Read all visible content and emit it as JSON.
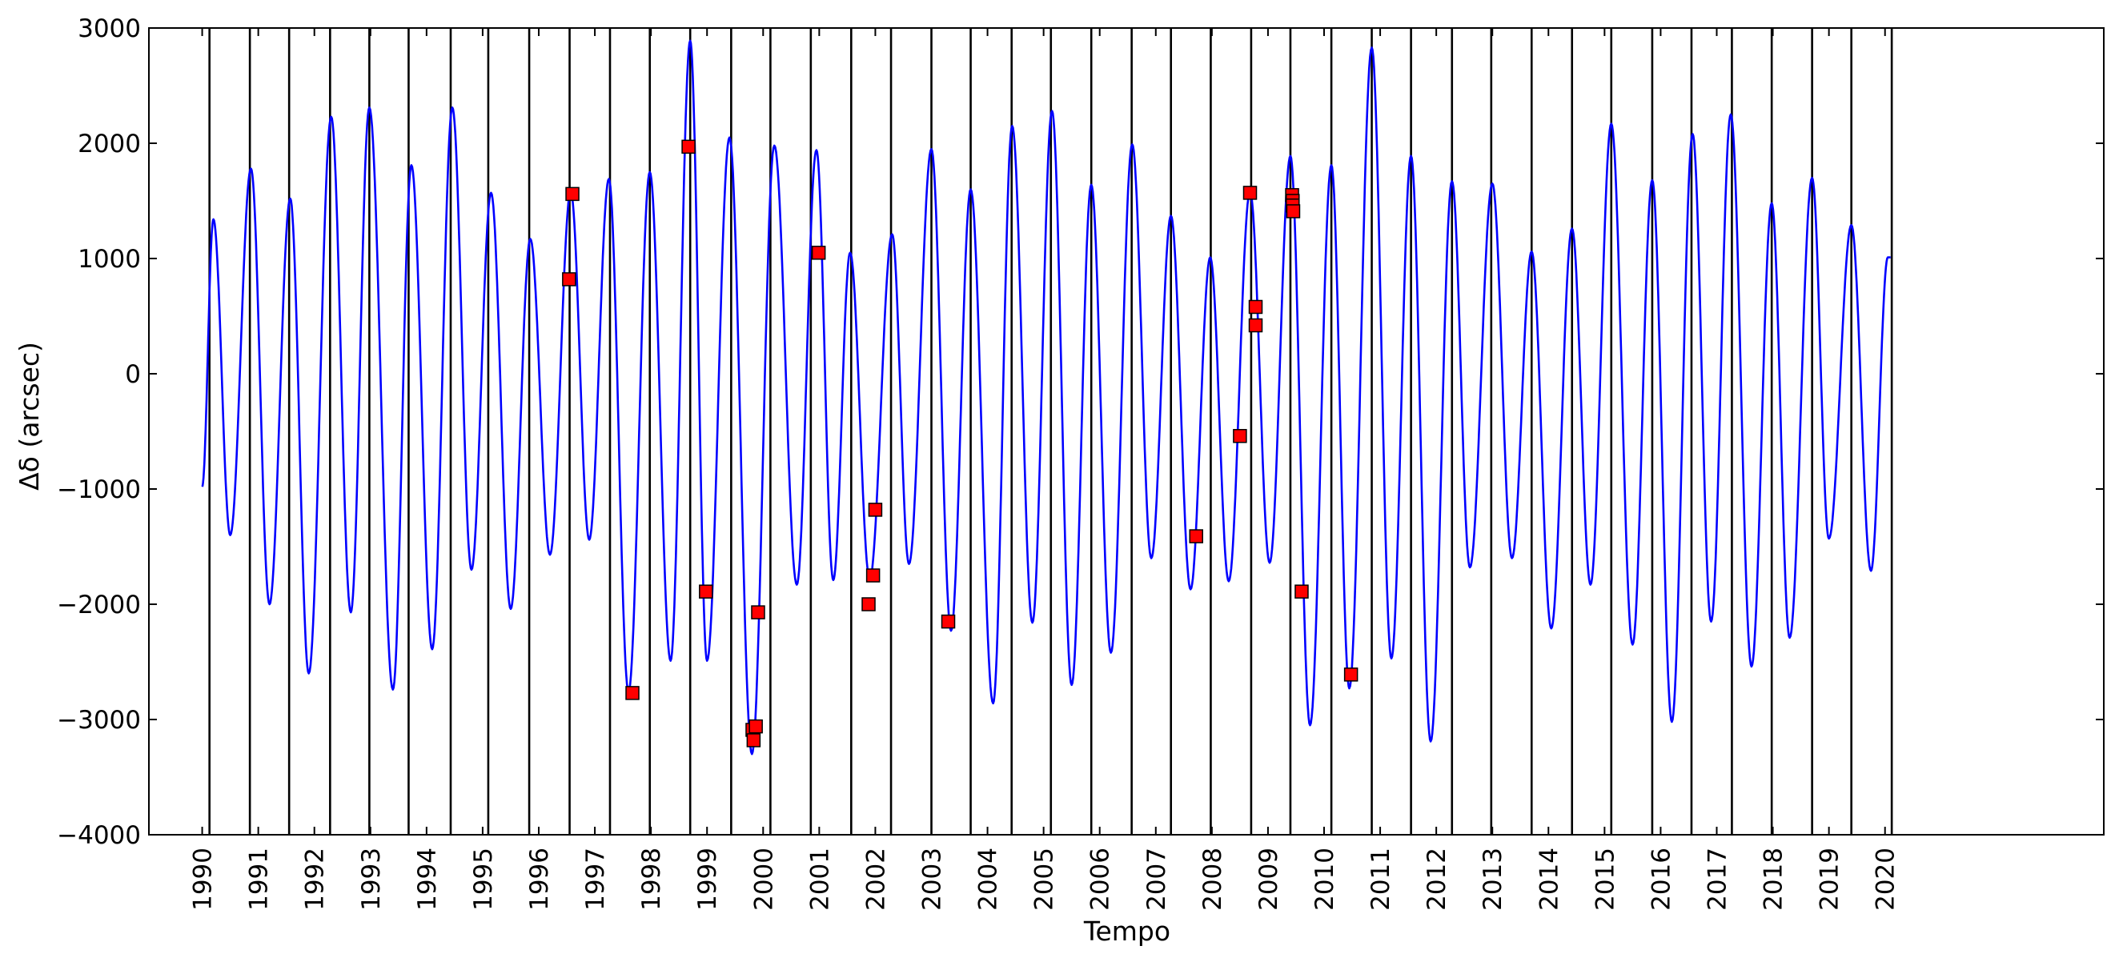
{
  "chart_data": {
    "type": "line",
    "title": "",
    "xlabel": "Tempo",
    "ylabel": "Δδ (arcsec)",
    "xlim": [
      1989.05,
      2023.9
    ],
    "ylim": [
      -4000,
      3000
    ],
    "x_ticks": [
      1990,
      1991,
      1992,
      1993,
      1994,
      1995,
      1996,
      1997,
      1998,
      1999,
      2000,
      2001,
      2002,
      2003,
      2004,
      2005,
      2006,
      2007,
      2008,
      2009,
      2010,
      2011,
      2012,
      2013,
      2014,
      2015,
      2016,
      2017,
      2018,
      2019,
      2020
    ],
    "x_tick_labels": [
      "1990",
      "1991",
      "1992",
      "1993",
      "1994",
      "1995",
      "1996",
      "1997",
      "1998",
      "1999",
      "2000",
      "2001",
      "2002",
      "2003",
      "2004",
      "2005",
      "2006",
      "2007",
      "2008",
      "2009",
      "2010",
      "2011",
      "2012",
      "2013",
      "2014",
      "2015",
      "2016",
      "2017",
      "2018",
      "2019",
      "2020"
    ],
    "y_ticks": [
      -4000,
      -3000,
      -2000,
      -1000,
      0,
      1000,
      2000,
      3000
    ],
    "y_tick_labels": [
      "−4000",
      "−3000",
      "−2000",
      "−1000",
      "0",
      "1000",
      "2000",
      "3000"
    ],
    "grid": false,
    "legend": "none",
    "vertical_lines": [
      1990.13,
      1990.85,
      1991.55,
      1992.28,
      1992.98,
      1993.68,
      1994.43,
      1995.1,
      1995.83,
      1996.55,
      1997.27,
      1997.98,
      1998.7,
      1999.43,
      2000.13,
      2000.85,
      2001.57,
      2002.28,
      2003.0,
      2003.7,
      2004.43,
      2005.13,
      2005.85,
      2006.57,
      2007.27,
      2007.98,
      2008.7,
      2009.4,
      2010.13,
      2010.85,
      2011.55,
      2012.28,
      2012.98,
      2013.7,
      2014.42,
      2015.12,
      2015.85,
      2016.55,
      2017.27,
      2017.98,
      2018.7,
      2019.4,
      2020.12
    ],
    "line_series": {
      "name": "",
      "color": "#0000ff",
      "x": [
        1990.0,
        1990.2,
        1990.5,
        1990.87,
        1991.2,
        1991.57,
        1991.9,
        1992.3,
        1992.65,
        1992.98,
        1993.4,
        1993.73,
        1994.1,
        1994.46,
        1994.8,
        1995.15,
        1995.5,
        1995.85,
        1996.2,
        1996.57,
        1996.9,
        1997.25,
        1997.6,
        1997.98,
        1998.35,
        1998.7,
        1999.0,
        1999.4,
        1999.8,
        2000.2,
        2000.6,
        2000.95,
        2001.25,
        2001.55,
        2001.9,
        2002.3,
        2002.6,
        2003.0,
        2003.35,
        2003.7,
        2004.1,
        2004.44,
        2004.8,
        2005.15,
        2005.5,
        2005.85,
        2006.2,
        2006.58,
        2006.92,
        2007.27,
        2007.62,
        2007.97,
        2008.3,
        2008.68,
        2009.03,
        2009.4,
        2009.75,
        2010.13,
        2010.45,
        2010.85,
        2011.2,
        2011.55,
        2011.9,
        2012.28,
        2012.6,
        2013.0,
        2013.35,
        2013.7,
        2014.05,
        2014.42,
        2014.75,
        2015.12,
        2015.5,
        2015.85,
        2016.2,
        2016.57,
        2016.9,
        2017.25,
        2017.62,
        2017.98,
        2018.3,
        2018.7,
        2019.0,
        2019.4,
        2019.75,
        2020.05,
        2020.1
      ],
      "y": [
        -980,
        1340,
        -1400,
        1780,
        -2000,
        1520,
        -2600,
        2230,
        -2070,
        2310,
        -2740,
        1810,
        -2390,
        2310,
        -1700,
        1570,
        -2040,
        1170,
        -1570,
        1580,
        -1440,
        1690,
        -2760,
        1750,
        -2490,
        2890,
        -2490,
        2050,
        -3300,
        1980,
        -1830,
        1940,
        -1790,
        1050,
        -1780,
        1210,
        -1650,
        1950,
        -2230,
        1600,
        -2860,
        2150,
        -2160,
        2280,
        -2700,
        1640,
        -2420,
        1990,
        -1600,
        1370,
        -1870,
        1010,
        -1800,
        1580,
        -1640,
        1890,
        -3050,
        1810,
        -2730,
        2830,
        -2470,
        1890,
        -3190,
        1670,
        -1680,
        1650,
        -1600,
        1060,
        -2210,
        1260,
        -1830,
        2170,
        -2350,
        1680,
        -3020,
        2080,
        -2150,
        2250,
        -2540,
        1480,
        -2290,
        1700,
        -1430,
        1290,
        -1710,
        1010,
        1010
      ]
    },
    "marker_series": {
      "name": "",
      "color": "#ff0000",
      "marker": "square",
      "x": [
        1996.54,
        1996.6,
        1997.67,
        1998.67,
        1998.98,
        1999.81,
        1999.83,
        1999.87,
        1999.91,
        2000.99,
        2001.88,
        2001.96,
        2002.0,
        2003.3,
        2007.72,
        2008.5,
        2008.68,
        2008.78,
        2008.78,
        2009.43,
        2009.44,
        2009.44,
        2009.45,
        2009.6,
        2010.48
      ],
      "y": [
        820,
        1560,
        -2770,
        1970,
        -1890,
        -3090,
        -3180,
        -3060,
        -2070,
        1050,
        -2000,
        -1750,
        -1180,
        -2150,
        -1410,
        -540,
        1570,
        580,
        420,
        1550,
        1500,
        1460,
        1410,
        -1890,
        -2610
      ]
    }
  }
}
